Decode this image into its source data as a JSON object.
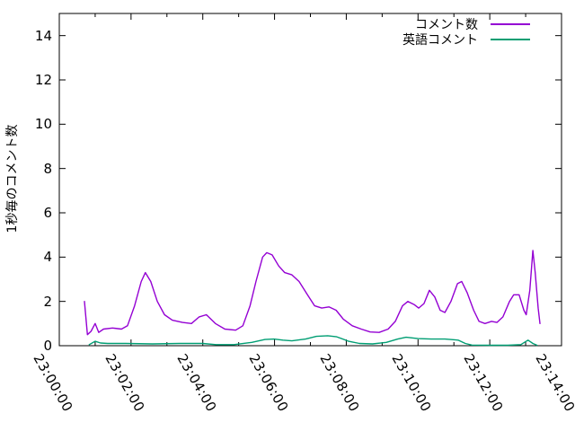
{
  "figure": {
    "background": "#ffffff",
    "border_color": "#000000",
    "tick_color": "#000000",
    "text_color": "#000000"
  },
  "chart_data": {
    "type": "line",
    "title": "",
    "xlabel": "",
    "ylabel": "1秒毎のコメント数",
    "grid": false,
    "legend_position": "top-right",
    "xlim": [
      "23:00:00",
      "23:14:00"
    ],
    "ylim": [
      0,
      15
    ],
    "x_ticks": [
      "23:00:00",
      "23:02:00",
      "23:04:00",
      "23:06:00",
      "23:08:00",
      "23:10:00",
      "23:12:00",
      "23:14:00"
    ],
    "y_ticks": [
      0,
      2,
      4,
      6,
      8,
      10,
      12,
      14
    ],
    "series": [
      {
        "name": "コメント数",
        "color": "#9400d3",
        "points": [
          [
            "23:00:42",
            2.0
          ],
          [
            "23:00:47",
            0.5
          ],
          [
            "23:00:53",
            0.65
          ],
          [
            "23:01:00",
            1.0
          ],
          [
            "23:01:06",
            0.6
          ],
          [
            "23:01:14",
            0.75
          ],
          [
            "23:01:29",
            0.8
          ],
          [
            "23:01:44",
            0.75
          ],
          [
            "23:01:54",
            0.9
          ],
          [
            "23:02:06",
            1.8
          ],
          [
            "23:02:17",
            2.9
          ],
          [
            "23:02:24",
            3.3
          ],
          [
            "23:02:33",
            2.9
          ],
          [
            "23:02:44",
            2.0
          ],
          [
            "23:02:56",
            1.4
          ],
          [
            "23:03:09",
            1.15
          ],
          [
            "23:03:26",
            1.05
          ],
          [
            "23:03:41",
            1.0
          ],
          [
            "23:03:54",
            1.3
          ],
          [
            "23:04:06",
            1.4
          ],
          [
            "23:04:21",
            1.0
          ],
          [
            "23:04:37",
            0.75
          ],
          [
            "23:04:55",
            0.7
          ],
          [
            "23:05:07",
            0.9
          ],
          [
            "23:05:19",
            1.8
          ],
          [
            "23:05:29",
            2.9
          ],
          [
            "23:05:40",
            4.0
          ],
          [
            "23:05:47",
            4.2
          ],
          [
            "23:05:56",
            4.1
          ],
          [
            "23:06:07",
            3.6
          ],
          [
            "23:06:17",
            3.3
          ],
          [
            "23:06:29",
            3.2
          ],
          [
            "23:06:41",
            2.9
          ],
          [
            "23:06:55",
            2.3
          ],
          [
            "23:07:07",
            1.8
          ],
          [
            "23:07:19",
            1.7
          ],
          [
            "23:07:31",
            1.75
          ],
          [
            "23:07:43",
            1.6
          ],
          [
            "23:07:55",
            1.2
          ],
          [
            "23:08:10",
            0.9
          ],
          [
            "23:08:25",
            0.75
          ],
          [
            "23:08:40",
            0.62
          ],
          [
            "23:08:55",
            0.6
          ],
          [
            "23:09:10",
            0.75
          ],
          [
            "23:09:22",
            1.1
          ],
          [
            "23:09:34",
            1.8
          ],
          [
            "23:09:43",
            2.0
          ],
          [
            "23:09:54",
            1.85
          ],
          [
            "23:10:01",
            1.7
          ],
          [
            "23:10:10",
            1.9
          ],
          [
            "23:10:19",
            2.5
          ],
          [
            "23:10:28",
            2.2
          ],
          [
            "23:10:37",
            1.6
          ],
          [
            "23:10:45",
            1.5
          ],
          [
            "23:10:55",
            2.0
          ],
          [
            "23:11:06",
            2.8
          ],
          [
            "23:11:13",
            2.9
          ],
          [
            "23:11:22",
            2.4
          ],
          [
            "23:11:33",
            1.6
          ],
          [
            "23:11:42",
            1.1
          ],
          [
            "23:11:52",
            1.0
          ],
          [
            "23:12:03",
            1.1
          ],
          [
            "23:12:12",
            1.05
          ],
          [
            "23:12:22",
            1.3
          ],
          [
            "23:12:33",
            2.0
          ],
          [
            "23:12:40",
            2.3
          ],
          [
            "23:12:49",
            2.3
          ],
          [
            "23:12:57",
            1.6
          ],
          [
            "23:13:01",
            1.4
          ],
          [
            "23:13:07",
            2.5
          ],
          [
            "23:13:12",
            4.3
          ],
          [
            "23:13:16",
            3.3
          ],
          [
            "23:13:21",
            1.7
          ],
          [
            "23:13:24",
            1.0
          ]
        ]
      },
      {
        "name": "英語コメント",
        "color": "#009e73",
        "points": [
          [
            "23:00:50",
            0.05
          ],
          [
            "23:01:00",
            0.2
          ],
          [
            "23:01:09",
            0.12
          ],
          [
            "23:01:21",
            0.1
          ],
          [
            "23:01:51",
            0.1
          ],
          [
            "23:02:36",
            0.08
          ],
          [
            "23:03:21",
            0.1
          ],
          [
            "23:04:00",
            0.1
          ],
          [
            "23:04:22",
            0.05
          ],
          [
            "23:04:52",
            0.05
          ],
          [
            "23:05:22",
            0.15
          ],
          [
            "23:05:44",
            0.28
          ],
          [
            "23:05:59",
            0.3
          ],
          [
            "23:06:14",
            0.25
          ],
          [
            "23:06:29",
            0.22
          ],
          [
            "23:06:52",
            0.3
          ],
          [
            "23:07:10",
            0.42
          ],
          [
            "23:07:29",
            0.45
          ],
          [
            "23:07:44",
            0.4
          ],
          [
            "23:08:04",
            0.2
          ],
          [
            "23:08:22",
            0.1
          ],
          [
            "23:08:44",
            0.08
          ],
          [
            "23:09:07",
            0.15
          ],
          [
            "23:09:26",
            0.3
          ],
          [
            "23:09:40",
            0.38
          ],
          [
            "23:10:00",
            0.32
          ],
          [
            "23:10:22",
            0.3
          ],
          [
            "23:10:45",
            0.3
          ],
          [
            "23:11:07",
            0.25
          ],
          [
            "23:11:19",
            0.1
          ],
          [
            "23:11:30",
            0.03
          ],
          [
            "23:12:00",
            0.02
          ],
          [
            "23:12:30",
            0.02
          ],
          [
            "23:12:52",
            0.05
          ],
          [
            "23:13:04",
            0.25
          ],
          [
            "23:13:12",
            0.1
          ],
          [
            "23:13:19",
            0.02
          ]
        ]
      }
    ]
  }
}
